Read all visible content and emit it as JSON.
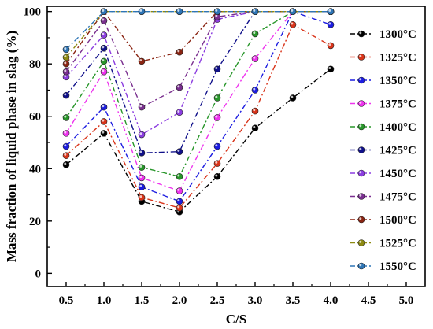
{
  "chart_data": {
    "type": "line",
    "xlabel": "C/S",
    "ylabel": "Mass fraction of liquid phase in slag (%)",
    "xlim": [
      0.25,
      5.25
    ],
    "ylim": [
      -5,
      102
    ],
    "xticks": [
      "0.5",
      "1.0",
      "1.5",
      "2.0",
      "2.5",
      "3.0",
      "3.5",
      "4.0",
      "4.5",
      "5.0"
    ],
    "yticks": [
      "0",
      "20",
      "40",
      "60",
      "80",
      "100"
    ],
    "legend_position": "right",
    "x": [
      0.5,
      1.0,
      1.5,
      2.0,
      2.5,
      3.0,
      3.5,
      4.0
    ],
    "series": [
      {
        "name": "1300°C",
        "color": "#000000",
        "dash": "dash-dot",
        "values": [
          41.5,
          53.5,
          27.5,
          23.5,
          37,
          55.5,
          67,
          78
        ]
      },
      {
        "name": "1325°C",
        "color": "#d9341a",
        "dash": "dash-dot",
        "values": [
          45,
          58,
          29,
          25,
          42,
          62,
          95,
          87
        ]
      },
      {
        "name": "1350°C",
        "color": "#1c1ce0",
        "dash": "dash-dot",
        "values": [
          48.5,
          63.5,
          33,
          27.5,
          48.5,
          70,
          100,
          95
        ]
      },
      {
        "name": "1375°C",
        "color": "#ee33ee",
        "dash": "dash-dot",
        "values": [
          53.5,
          77,
          36.5,
          31.5,
          59.5,
          82,
          100,
          100
        ]
      },
      {
        "name": "1400°C",
        "color": "#28962a",
        "dash": "dash-dot",
        "values": [
          59.5,
          81,
          40.5,
          37,
          67,
          91.5,
          100,
          100
        ]
      },
      {
        "name": "1425°C",
        "color": "#10108a",
        "dash": "dash-dot",
        "values": [
          68,
          86,
          46,
          46.5,
          78,
          100,
          100,
          100
        ]
      },
      {
        "name": "1450°C",
        "color": "#8c3de0",
        "dash": "dash-dot",
        "values": [
          75,
          91,
          53,
          61.5,
          97,
          100,
          100,
          100
        ]
      },
      {
        "name": "1475°C",
        "color": "#7a2f8f",
        "dash": "dash-dot",
        "values": [
          77,
          96.5,
          63.5,
          71,
          98,
          100,
          100,
          100
        ]
      },
      {
        "name": "1500°C",
        "color": "#8a2412",
        "dash": "dash-dot",
        "values": [
          80,
          100,
          81,
          84.5,
          100,
          100,
          100,
          100
        ]
      },
      {
        "name": "1525°C",
        "color": "#8d8a12",
        "dash": "dash-dot",
        "values": [
          82.5,
          100,
          100,
          100,
          100,
          100,
          100,
          100
        ]
      },
      {
        "name": "1550°C",
        "color": "#2e75b6",
        "dash": "dash-dot",
        "values": [
          85.5,
          100,
          100,
          100,
          100,
          100,
          100,
          100
        ]
      }
    ]
  }
}
